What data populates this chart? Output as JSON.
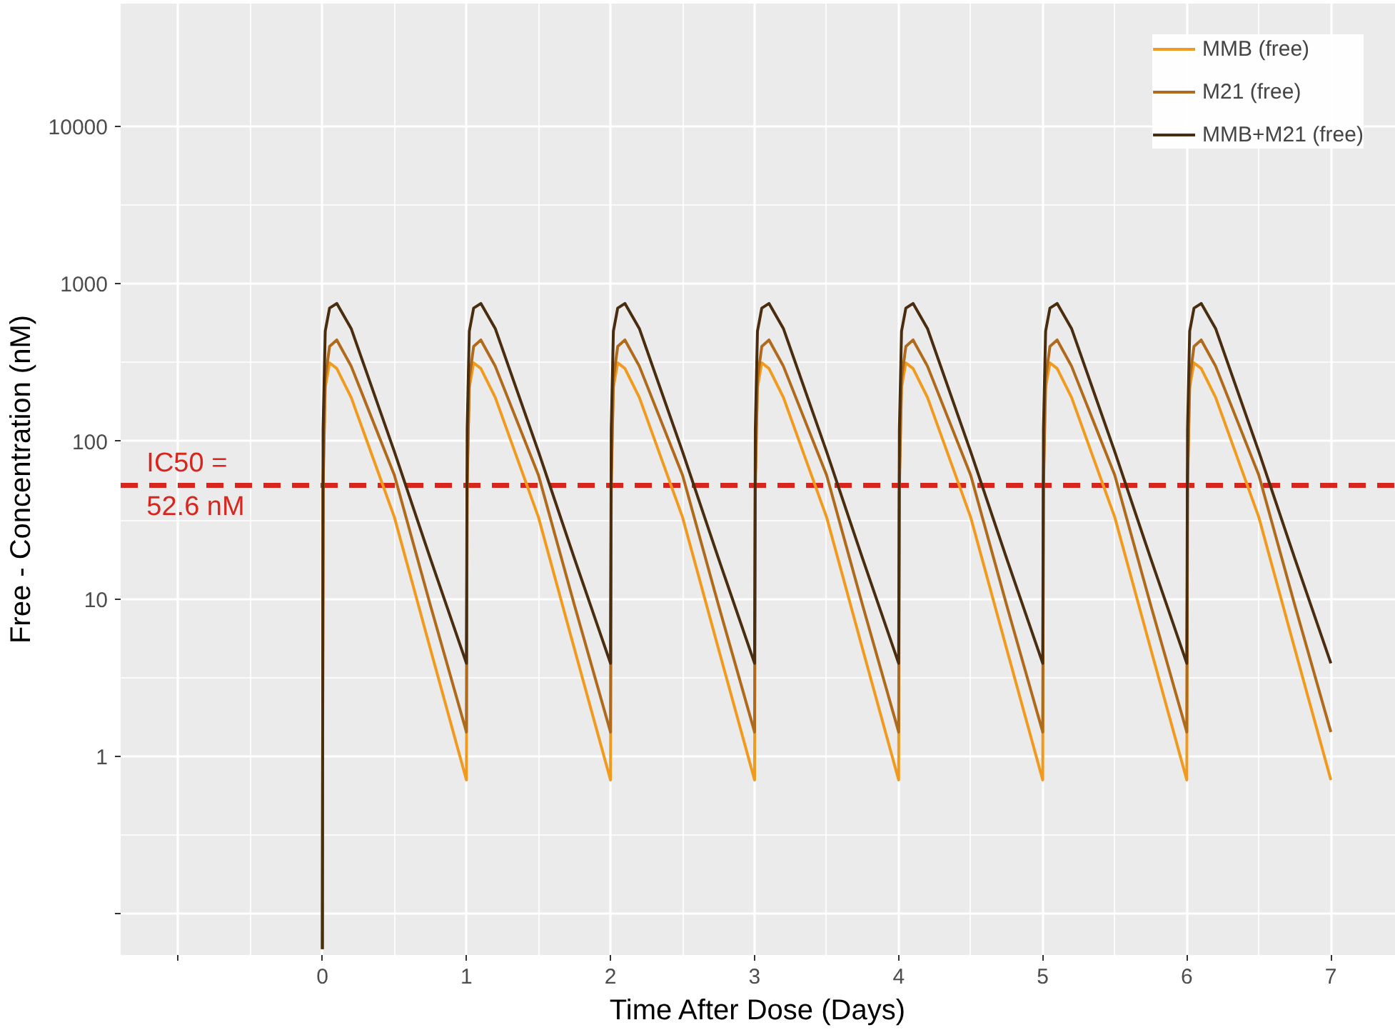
{
  "chart_data": {
    "type": "line",
    "xlabel": "Time After Dose (Days)",
    "ylabel": "Free - Concentration (nM)",
    "x": [
      0,
      0.005,
      0.02,
      0.05,
      0.1,
      0.2,
      0.5,
      0.75,
      1,
      1.005,
      1.02,
      1.05,
      1.1,
      1.2,
      1.5,
      1.75,
      2,
      2.005,
      2.02,
      2.05,
      2.1,
      2.2,
      2.5,
      2.75,
      3,
      3.005,
      3.02,
      3.05,
      3.1,
      3.2,
      3.5,
      3.75,
      4,
      4.005,
      4.02,
      4.05,
      4.1,
      4.2,
      4.5,
      4.75,
      5,
      5.005,
      5.02,
      5.05,
      5.1,
      5.2,
      5.5,
      5.75,
      6,
      6.005,
      6.02,
      6.05,
      6.1,
      6.2,
      6.5,
      6.75,
      7
    ],
    "series": [
      {
        "name": "MMB (free)",
        "color": "#f09a1e",
        "values": [
          0.06,
          60,
          220,
          315,
          290,
          190,
          33,
          4.8,
          0.71,
          60,
          220,
          315,
          290,
          190,
          33,
          4.8,
          0.71,
          60,
          220,
          315,
          290,
          190,
          33,
          4.8,
          0.71,
          60,
          220,
          315,
          290,
          190,
          33,
          4.8,
          0.71,
          60,
          220,
          315,
          290,
          190,
          33,
          4.8,
          0.71,
          60,
          220,
          315,
          290,
          190,
          33,
          4.8,
          0.71,
          60,
          220,
          315,
          290,
          190,
          33,
          4.8,
          0.71
        ]
      },
      {
        "name": "M21 (free)",
        "color": "#b06a1c",
        "values": [
          0.06,
          50,
          250,
          400,
          440,
          300,
          61,
          9.1,
          1.43,
          50,
          250,
          400,
          440,
          300,
          61,
          9.1,
          1.43,
          50,
          250,
          400,
          440,
          300,
          61,
          9.1,
          1.43,
          50,
          250,
          400,
          440,
          300,
          61,
          9.1,
          1.43,
          50,
          250,
          400,
          440,
          300,
          61,
          9.1,
          1.43,
          50,
          250,
          400,
          440,
          300,
          61,
          9.1,
          1.43,
          50,
          250,
          400,
          440,
          300,
          61,
          9.1,
          1.43
        ]
      },
      {
        "name": "MMB+M21 (free)",
        "color": "#4a2c0e",
        "values": [
          0.06,
          120,
          500,
          700,
          750,
          520,
          86,
          18,
          3.9,
          120,
          500,
          700,
          750,
          520,
          86,
          18,
          3.9,
          120,
          500,
          700,
          750,
          520,
          86,
          18,
          3.9,
          120,
          500,
          700,
          750,
          520,
          86,
          18,
          3.9,
          120,
          500,
          700,
          750,
          520,
          86,
          18,
          3.9,
          120,
          500,
          700,
          750,
          520,
          86,
          18,
          3.9,
          120,
          500,
          700,
          750,
          520,
          86,
          18,
          3.9
        ]
      }
    ],
    "log": "y",
    "xlim": [
      -1.4,
      7.45
    ],
    "ylim": [
      0.055,
      60000
    ],
    "xticks": [
      {
        "value": -1,
        "label": null
      },
      0,
      1,
      2,
      3,
      4,
      5,
      6,
      7
    ],
    "yticks": [
      {
        "value": 0.1,
        "label": null
      },
      1,
      10,
      100,
      1000,
      10000
    ],
    "ref_lines": [
      {
        "axis": "y",
        "value": 52.6,
        "label": "IC50 =\n52.6 nM",
        "color": "#d7261e",
        "line_style": "dashed"
      }
    ],
    "grid": true,
    "legend": "top right"
  }
}
